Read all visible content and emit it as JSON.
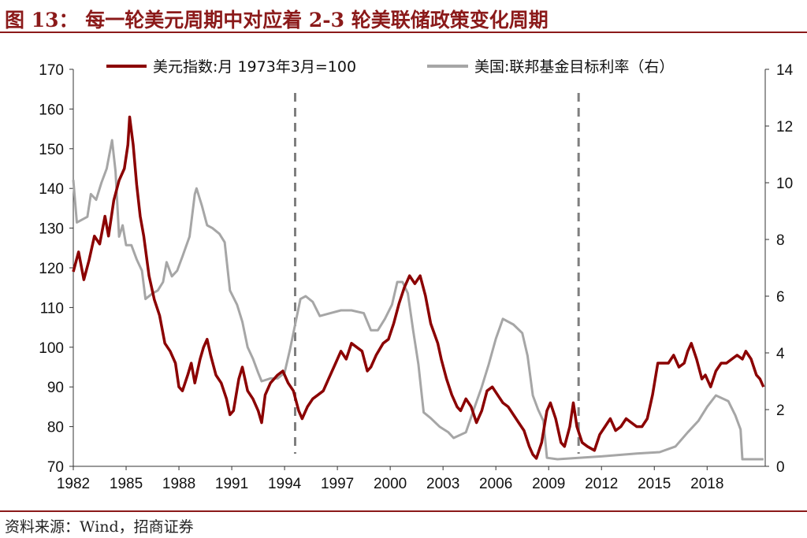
{
  "header": {
    "title": "图 13：  每一轮美元周期中对应着 2-3 轮美联储政策变化周期"
  },
  "footer": {
    "source": "资料来源：Wind，招商证券"
  },
  "colors": {
    "accent": "#8b1a1a",
    "dxy": "#8b0000",
    "fed": "#a6a6a6",
    "divider": "#7f7f7f"
  },
  "chart_data": {
    "type": "line",
    "x_ticks": [
      "1982",
      "1985",
      "1988",
      "1991",
      "1994",
      "1997",
      "2000",
      "2003",
      "2006",
      "2009",
      "2012",
      "2015",
      "2018"
    ],
    "xlim": [
      1982,
      2021.3
    ],
    "y_left": {
      "ticks": [
        "70",
        "80",
        "90",
        "100",
        "110",
        "120",
        "130",
        "140",
        "150",
        "160",
        "170"
      ],
      "ylim": [
        70,
        170
      ]
    },
    "y_right": {
      "ticks": [
        "0",
        "2",
        "4",
        "6",
        "8",
        "10",
        "12",
        "14"
      ],
      "ylim": [
        0,
        14
      ]
    },
    "divider_years": [
      1994.6,
      2010.7
    ],
    "series": [
      {
        "name": "美元指数:月 1973年3月=100",
        "axis": "left",
        "points": [
          [
            1982.0,
            119
          ],
          [
            1982.3,
            124
          ],
          [
            1982.6,
            117
          ],
          [
            1982.9,
            122
          ],
          [
            1983.2,
            128
          ],
          [
            1983.5,
            126
          ],
          [
            1983.8,
            133
          ],
          [
            1984.0,
            128
          ],
          [
            1984.3,
            137
          ],
          [
            1984.6,
            142
          ],
          [
            1984.9,
            145
          ],
          [
            1985.1,
            151
          ],
          [
            1985.2,
            158
          ],
          [
            1985.4,
            151
          ],
          [
            1985.6,
            141
          ],
          [
            1985.8,
            133
          ],
          [
            1986.0,
            128
          ],
          [
            1986.3,
            118
          ],
          [
            1986.6,
            112
          ],
          [
            1986.9,
            108
          ],
          [
            1987.2,
            101
          ],
          [
            1987.5,
            99
          ],
          [
            1987.8,
            96
          ],
          [
            1988.0,
            90
          ],
          [
            1988.2,
            89
          ],
          [
            1988.5,
            93
          ],
          [
            1988.7,
            96
          ],
          [
            1988.9,
            91
          ],
          [
            1989.2,
            97
          ],
          [
            1989.4,
            100
          ],
          [
            1989.6,
            102
          ],
          [
            1989.8,
            98
          ],
          [
            1990.1,
            93
          ],
          [
            1990.4,
            91
          ],
          [
            1990.7,
            87
          ],
          [
            1990.9,
            83
          ],
          [
            1991.1,
            84
          ],
          [
            1991.4,
            92
          ],
          [
            1991.6,
            95
          ],
          [
            1991.9,
            89
          ],
          [
            1992.2,
            87
          ],
          [
            1992.5,
            84
          ],
          [
            1992.7,
            81
          ],
          [
            1992.9,
            88
          ],
          [
            1993.2,
            91
          ],
          [
            1993.6,
            93
          ],
          [
            1993.9,
            94
          ],
          [
            1994.2,
            91
          ],
          [
            1994.5,
            89
          ],
          [
            1994.8,
            84
          ],
          [
            1995.0,
            82
          ],
          [
            1995.3,
            85
          ],
          [
            1995.6,
            87
          ],
          [
            1995.9,
            88
          ],
          [
            1996.2,
            89
          ],
          [
            1996.5,
            92
          ],
          [
            1996.9,
            96
          ],
          [
            1997.2,
            99
          ],
          [
            1997.5,
            97
          ],
          [
            1997.8,
            101
          ],
          [
            1998.1,
            100
          ],
          [
            1998.4,
            99
          ],
          [
            1998.7,
            94
          ],
          [
            1998.9,
            95
          ],
          [
            1999.2,
            98
          ],
          [
            1999.6,
            101
          ],
          [
            1999.9,
            102
          ],
          [
            2000.2,
            106
          ],
          [
            2000.5,
            111
          ],
          [
            2000.8,
            115
          ],
          [
            2001.1,
            118
          ],
          [
            2001.4,
            116
          ],
          [
            2001.7,
            118
          ],
          [
            2002.0,
            113
          ],
          [
            2002.3,
            106
          ],
          [
            2002.7,
            101
          ],
          [
            2002.9,
            97
          ],
          [
            2003.2,
            92
          ],
          [
            2003.5,
            88
          ],
          [
            2003.8,
            85
          ],
          [
            2004.0,
            84
          ],
          [
            2004.3,
            87
          ],
          [
            2004.6,
            85
          ],
          [
            2004.9,
            81
          ],
          [
            2005.2,
            84
          ],
          [
            2005.5,
            89
          ],
          [
            2005.8,
            90
          ],
          [
            2006.1,
            88
          ],
          [
            2006.4,
            86
          ],
          [
            2006.7,
            85
          ],
          [
            2007.0,
            83
          ],
          [
            2007.3,
            81
          ],
          [
            2007.6,
            79
          ],
          [
            2007.9,
            75
          ],
          [
            2008.1,
            73
          ],
          [
            2008.3,
            72
          ],
          [
            2008.6,
            76
          ],
          [
            2008.9,
            84
          ],
          [
            2009.1,
            86
          ],
          [
            2009.4,
            82
          ],
          [
            2009.7,
            76
          ],
          [
            2009.9,
            75
          ],
          [
            2010.2,
            80
          ],
          [
            2010.4,
            86
          ],
          [
            2010.6,
            80
          ],
          [
            2010.9,
            76
          ],
          [
            2011.2,
            75
          ],
          [
            2011.6,
            74
          ],
          [
            2011.9,
            78
          ],
          [
            2012.2,
            80
          ],
          [
            2012.5,
            82
          ],
          [
            2012.8,
            79
          ],
          [
            2013.1,
            80
          ],
          [
            2013.4,
            82
          ],
          [
            2013.7,
            81
          ],
          [
            2014.0,
            80
          ],
          [
            2014.3,
            80
          ],
          [
            2014.6,
            82
          ],
          [
            2014.9,
            88
          ],
          [
            2015.2,
            96
          ],
          [
            2015.5,
            96
          ],
          [
            2015.8,
            96
          ],
          [
            2016.1,
            98
          ],
          [
            2016.4,
            95
          ],
          [
            2016.7,
            96
          ],
          [
            2016.9,
            99
          ],
          [
            2017.1,
            101
          ],
          [
            2017.4,
            97
          ],
          [
            2017.7,
            92
          ],
          [
            2017.9,
            93
          ],
          [
            2018.2,
            90
          ],
          [
            2018.5,
            94
          ],
          [
            2018.8,
            96
          ],
          [
            2019.1,
            96
          ],
          [
            2019.4,
            97
          ],
          [
            2019.7,
            98
          ],
          [
            2020.0,
            97
          ],
          [
            2020.2,
            99
          ],
          [
            2020.5,
            97
          ],
          [
            2020.8,
            93
          ],
          [
            2021.0,
            92
          ],
          [
            2021.2,
            90
          ]
        ]
      },
      {
        "name": "美国:联邦基金目标利率（右）",
        "axis": "right",
        "points": [
          [
            1982.0,
            10.1
          ],
          [
            1982.2,
            8.6
          ],
          [
            1982.5,
            8.7
          ],
          [
            1982.8,
            8.8
          ],
          [
            1983.0,
            9.6
          ],
          [
            1983.3,
            9.4
          ],
          [
            1983.6,
            10.0
          ],
          [
            1983.9,
            10.5
          ],
          [
            1984.2,
            11.5
          ],
          [
            1984.4,
            10.4
          ],
          [
            1984.6,
            8.1
          ],
          [
            1984.8,
            8.5
          ],
          [
            1985.0,
            7.8
          ],
          [
            1985.3,
            7.8
          ],
          [
            1985.6,
            7.3
          ],
          [
            1985.9,
            6.9
          ],
          [
            1986.1,
            5.9
          ],
          [
            1986.5,
            6.1
          ],
          [
            1986.8,
            6.2
          ],
          [
            1987.1,
            6.5
          ],
          [
            1987.3,
            7.2
          ],
          [
            1987.6,
            6.7
          ],
          [
            1987.9,
            6.9
          ],
          [
            1988.2,
            7.4
          ],
          [
            1988.6,
            8.1
          ],
          [
            1988.9,
            9.6
          ],
          [
            1989.0,
            9.8
          ],
          [
            1989.3,
            9.2
          ],
          [
            1989.6,
            8.5
          ],
          [
            1989.9,
            8.4
          ],
          [
            1990.3,
            8.2
          ],
          [
            1990.6,
            7.9
          ],
          [
            1990.9,
            6.2
          ],
          [
            1991.3,
            5.7
          ],
          [
            1991.6,
            5.1
          ],
          [
            1991.9,
            4.2
          ],
          [
            1992.2,
            3.8
          ],
          [
            1992.5,
            3.3
          ],
          [
            1992.7,
            3.0
          ],
          [
            1993.2,
            3.1
          ],
          [
            1993.6,
            3.1
          ],
          [
            1994.0,
            3.3
          ],
          [
            1994.3,
            4.1
          ],
          [
            1994.6,
            5.0
          ],
          [
            1994.9,
            5.9
          ],
          [
            1995.2,
            6.0
          ],
          [
            1995.6,
            5.8
          ],
          [
            1996.0,
            5.3
          ],
          [
            1996.6,
            5.4
          ],
          [
            1997.2,
            5.5
          ],
          [
            1997.8,
            5.5
          ],
          [
            1998.5,
            5.4
          ],
          [
            1998.9,
            4.8
          ],
          [
            1999.3,
            4.8
          ],
          [
            1999.7,
            5.2
          ],
          [
            2000.1,
            5.7
          ],
          [
            2000.4,
            6.5
          ],
          [
            2000.7,
            6.5
          ],
          [
            2001.0,
            6.1
          ],
          [
            2001.3,
            4.8
          ],
          [
            2001.6,
            3.6
          ],
          [
            2001.9,
            1.9
          ],
          [
            2002.3,
            1.7
          ],
          [
            2002.8,
            1.4
          ],
          [
            2003.3,
            1.2
          ],
          [
            2003.6,
            1.0
          ],
          [
            2004.3,
            1.2
          ],
          [
            2004.8,
            2.1
          ],
          [
            2005.2,
            2.8
          ],
          [
            2005.6,
            3.6
          ],
          [
            2006.0,
            4.5
          ],
          [
            2006.4,
            5.2
          ],
          [
            2007.0,
            5.0
          ],
          [
            2007.5,
            4.7
          ],
          [
            2007.8,
            3.9
          ],
          [
            2008.1,
            2.5
          ],
          [
            2008.4,
            2.0
          ],
          [
            2008.7,
            1.6
          ],
          [
            2008.9,
            0.3
          ],
          [
            2009.5,
            0.25
          ],
          [
            2012.0,
            0.35
          ],
          [
            2014.0,
            0.45
          ],
          [
            2015.3,
            0.5
          ],
          [
            2016.2,
            0.7
          ],
          [
            2016.9,
            1.2
          ],
          [
            2017.5,
            1.6
          ],
          [
            2018.0,
            2.1
          ],
          [
            2018.5,
            2.5
          ],
          [
            2019.2,
            2.3
          ],
          [
            2019.6,
            1.8
          ],
          [
            2019.9,
            1.3
          ],
          [
            2020.0,
            0.25
          ],
          [
            2021.2,
            0.25
          ]
        ]
      }
    ]
  }
}
